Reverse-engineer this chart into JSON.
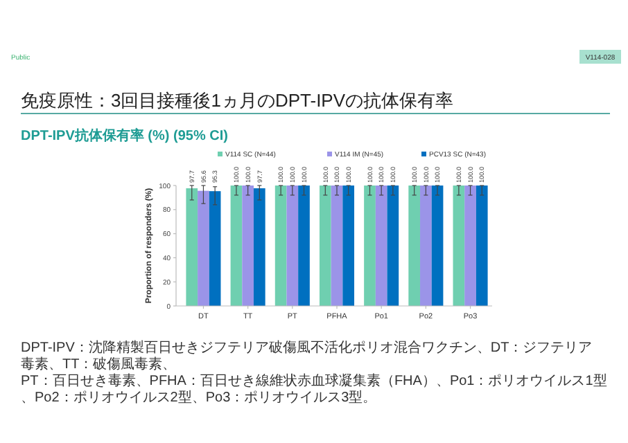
{
  "chart_data": {
    "type": "bar",
    "title": "免疫原性：3回目接種後1ヵ月のDPT-IPVの抗体保有率",
    "subtitle": "DPT-IPV抗体保有率 (%) (95% CI)",
    "ylabel": "Proportion of responders (%)",
    "categories": [
      "DT",
      "TT",
      "PT",
      "PFHA",
      "Po1",
      "Po2",
      "Po3"
    ],
    "series": [
      {
        "name": "V114 SC (N=44)",
        "color": "#6fcfb0",
        "values": [
          97.7,
          100,
          100,
          100,
          100,
          100,
          100
        ],
        "value_labels": [
          "97.7",
          "100.0",
          "100.0",
          "100.0",
          "100.0",
          "100.0",
          "100.0"
        ],
        "errors": [
          [
            88,
            100
          ],
          [
            92,
            100
          ],
          [
            92,
            100
          ],
          [
            92,
            100
          ],
          [
            92,
            100
          ],
          [
            92,
            100
          ],
          [
            92,
            100
          ]
        ]
      },
      {
        "name": "V114 IM (N=45)",
        "color": "#9b94e8",
        "values": [
          95.6,
          100,
          100,
          100,
          100,
          100,
          100
        ],
        "value_labels": [
          "95.6",
          "100.0",
          "100.0",
          "100.0",
          "100.0",
          "100.0",
          "100.0"
        ],
        "errors": [
          [
            85,
            100
          ],
          [
            92,
            100
          ],
          [
            92,
            100
          ],
          [
            92,
            100
          ],
          [
            92,
            100
          ],
          [
            92,
            100
          ],
          [
            92,
            100
          ]
        ]
      },
      {
        "name": "PCV13 SC (N=43)",
        "color": "#0070c0",
        "values": [
          95.3,
          97.7,
          100,
          100,
          100,
          100,
          100
        ],
        "value_labels": [
          "95.3",
          "97.7",
          "100.0",
          "100.0",
          "100.0",
          "100.0",
          "100.0"
        ],
        "errors": [
          [
            84,
            99
          ],
          [
            88,
            100
          ],
          [
            92,
            100
          ],
          [
            92,
            100
          ],
          [
            92,
            100
          ],
          [
            92,
            100
          ],
          [
            92,
            100
          ]
        ]
      }
    ],
    "ylim": [
      0,
      100
    ],
    "yticks": [
      0,
      20,
      40,
      60,
      80,
      100
    ],
    "grid": false,
    "legend": "top",
    "annotations": [
      "Public",
      "V114-028",
      "DPT-IPV：沈降精製百日せきジフテリア破傷風不活化ポリオ混合ワクチン、DT：ジフテリア毒素、TT：破傷風毒素、",
      "PT：百日せき毒素、PFHA：百日せき線維状赤血球凝集素（FHA）、Po1：ポリオウイルス1型、Po2：ポリオウイルス2型、Po3：ポリオウイルス3型。"
    ]
  }
}
